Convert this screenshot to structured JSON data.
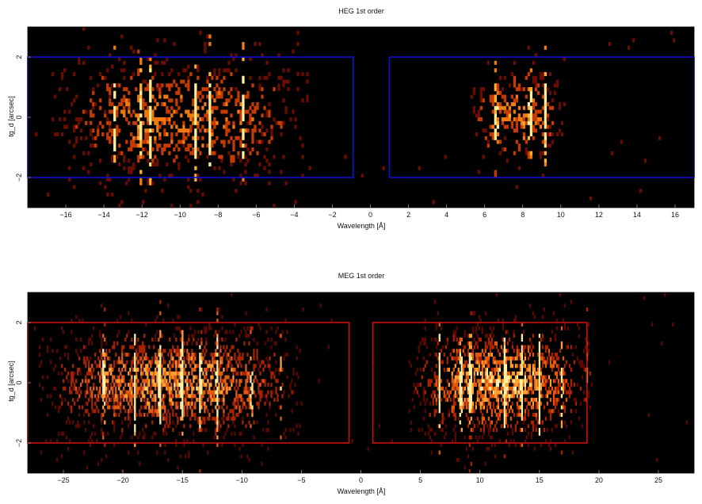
{
  "chart_data": [
    {
      "type": "heatmap",
      "title": "HEG 1st order",
      "xlabel": "Wavelength [Å]",
      "ylabel": "tg_d [arcsec]",
      "xlim": [
        -18,
        17
      ],
      "ylim": [
        -3,
        3
      ],
      "xticks": [
        -16,
        -14,
        -12,
        -10,
        -8,
        -6,
        -4,
        -2,
        0,
        2,
        4,
        6,
        8,
        10,
        12,
        14,
        16
      ],
      "xtick_labels": [
        "−16",
        "−14",
        "−12",
        "−10",
        "−8",
        "−6",
        "−4",
        "−2",
        "0",
        "2",
        "4",
        "6",
        "8",
        "10",
        "12",
        "14",
        "16"
      ],
      "yticks": [
        -2,
        0,
        2
      ],
      "ytick_labels": [
        "−2",
        "0",
        "2"
      ],
      "background": "#000000",
      "colormap": [
        "#6a0d00",
        "#c43a00",
        "#f07a10",
        "#ffb030",
        "#fff09a"
      ],
      "extraction_box_color": "#1010c8",
      "extraction_regions": [
        {
          "x": [
            -18,
            -0.9
          ],
          "y": [
            -2,
            2
          ]
        },
        {
          "x": [
            1,
            17
          ],
          "y": [
            -2,
            2
          ]
        }
      ],
      "source_regions": [
        {
          "x": [
            -16.8,
            -3.2
          ],
          "y": [
            -1.9,
            1.8
          ],
          "density": 0.55
        },
        {
          "x": [
            5.2,
            10.3
          ],
          "y": [
            -1.2,
            1.6
          ],
          "density": 0.6
        }
      ],
      "emission_lines_x": [
        -13.45,
        -12.1,
        -11.55,
        -9.2,
        -8.45,
        -6.7,
        6.6,
        8.4,
        9.2
      ],
      "bins": [
        280,
        48
      ]
    },
    {
      "type": "heatmap",
      "title": "MEG 1st order",
      "xlabel": "Wavelength [Å]",
      "ylabel": "tg_d [arcsec]",
      "xlim": [
        -28,
        28
      ],
      "ylim": [
        -3,
        3
      ],
      "xticks": [
        -25,
        -20,
        -15,
        -10,
        -5,
        0,
        5,
        10,
        15,
        20,
        25
      ],
      "xtick_labels": [
        "−25",
        "−20",
        "−15",
        "−10",
        "−5",
        "0",
        "5",
        "10",
        "15",
        "20",
        "25"
      ],
      "yticks": [
        -2,
        0,
        2
      ],
      "ytick_labels": [
        "−2",
        "0",
        "2"
      ],
      "background": "#000000",
      "colormap": [
        "#5a0800",
        "#a82200",
        "#e05a10",
        "#ffa030",
        "#fff0a0"
      ],
      "extraction_box_color": "#cc1010",
      "extraction_regions": [
        {
          "x": [
            -28,
            -1
          ],
          "y": [
            -2,
            2
          ]
        },
        {
          "x": [
            1,
            19
          ],
          "y": [
            -2,
            2
          ]
        }
      ],
      "source_regions": [
        {
          "x": [
            -27,
            -5
          ],
          "y": [
            -1.6,
            1.6
          ],
          "density": 0.8
        },
        {
          "x": [
            4,
            19.3
          ],
          "y": [
            -1.6,
            1.6
          ],
          "density": 0.9
        }
      ],
      "emission_lines_x": [
        -21.6,
        -19,
        -16.9,
        -15.05,
        -13.5,
        -12.1,
        -9.2,
        -6.7,
        6.6,
        8.4,
        9.2,
        12.1,
        13.5,
        15,
        16.9,
        18.97
      ],
      "bins": [
        420,
        48
      ]
    }
  ]
}
